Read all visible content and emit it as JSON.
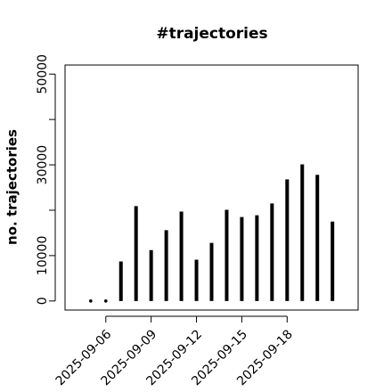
{
  "chart_data": {
    "type": "bar",
    "title": "#trajectories",
    "y_label": "no. trajectories",
    "x": [
      "2025-09-05",
      "2025-09-06",
      "2025-09-07",
      "2025-09-08",
      "2025-09-09",
      "2025-09-10",
      "2025-09-11",
      "2025-09-12",
      "2025-09-13",
      "2025-09-14",
      "2025-09-15",
      "2025-09-16",
      "2025-09-17",
      "2025-09-18",
      "2025-09-19",
      "2025-09-20",
      "2025-09-21"
    ],
    "values": [
      0,
      0,
      8700,
      20900,
      11200,
      15600,
      19700,
      9100,
      12800,
      20100,
      18500,
      18900,
      21500,
      26800,
      30100,
      27800,
      17500
    ],
    "color": "#000000",
    "xticks": [
      "2025-09-06",
      "2025-09-09",
      "2025-09-12",
      "2025-09-15",
      "2025-09-18"
    ],
    "ylim": [
      -2000,
      52000
    ],
    "yticks": [
      0,
      10000,
      30000,
      50000
    ],
    "yminor_ticks": [
      20000,
      40000
    ]
  }
}
